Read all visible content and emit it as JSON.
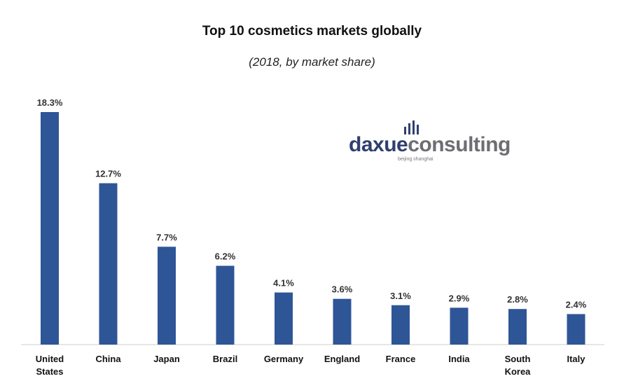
{
  "title": "Top 10 cosmetics markets globally",
  "subtitle": "(2018, by market share)",
  "logo": {
    "brand_part1": "daxue",
    "brand_part2": "consulting",
    "tagline": "beijing shanghai"
  },
  "colors": {
    "bar": "#2e5596",
    "axis": "#cccccc"
  },
  "chart_data": {
    "type": "bar",
    "categories": [
      [
        "United",
        "States"
      ],
      [
        "China"
      ],
      [
        "Japan"
      ],
      [
        "Brazil"
      ],
      [
        "Germany"
      ],
      [
        "England"
      ],
      [
        "France"
      ],
      [
        "India"
      ],
      [
        "South",
        "Korea"
      ],
      [
        "Italy"
      ]
    ],
    "values": [
      18.3,
      12.7,
      7.7,
      6.2,
      4.1,
      3.6,
      3.1,
      2.9,
      2.8,
      2.4
    ],
    "value_labels": [
      "18.3%",
      "12.7%",
      "7.7%",
      "6.2%",
      "4.1%",
      "3.6%",
      "3.1%",
      "2.9%",
      "2.8%",
      "2.4%"
    ],
    "ylim": [
      0,
      18.3
    ],
    "grid": false,
    "legend": "none"
  }
}
